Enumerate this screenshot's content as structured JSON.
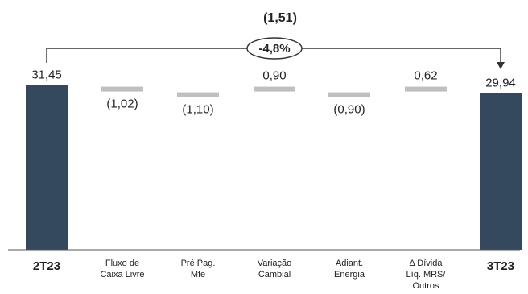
{
  "chart_data": {
    "type": "bar",
    "subtype": "waterfall",
    "categories": [
      [
        "2T23"
      ],
      [
        "Fluxo de",
        "Caixa Livre"
      ],
      [
        "Pré Pag.",
        "Mfe"
      ],
      [
        "Variação",
        "Cambial"
      ],
      [
        "Adiant.",
        "Energia"
      ],
      [
        "Δ Dívida",
        "Líq. MRS/",
        "Outros"
      ],
      [
        "3T23"
      ]
    ],
    "values": [
      31.45,
      -1.02,
      -1.1,
      0.9,
      -0.9,
      0.62,
      29.94
    ],
    "value_labels": [
      "31,45",
      "(1,02)",
      "(1,10)",
      "0,90",
      "(0,90)",
      "0,62",
      "29,94"
    ],
    "bar_kinds": [
      "total",
      "delta",
      "delta",
      "delta",
      "delta",
      "delta",
      "total"
    ],
    "bracket": {
      "label": "(1,51)",
      "change": "-4,8%"
    },
    "colors": {
      "total": "#34495e",
      "delta": "#bfbfbf",
      "axis": "#555555",
      "bracket": "#333333"
    }
  }
}
